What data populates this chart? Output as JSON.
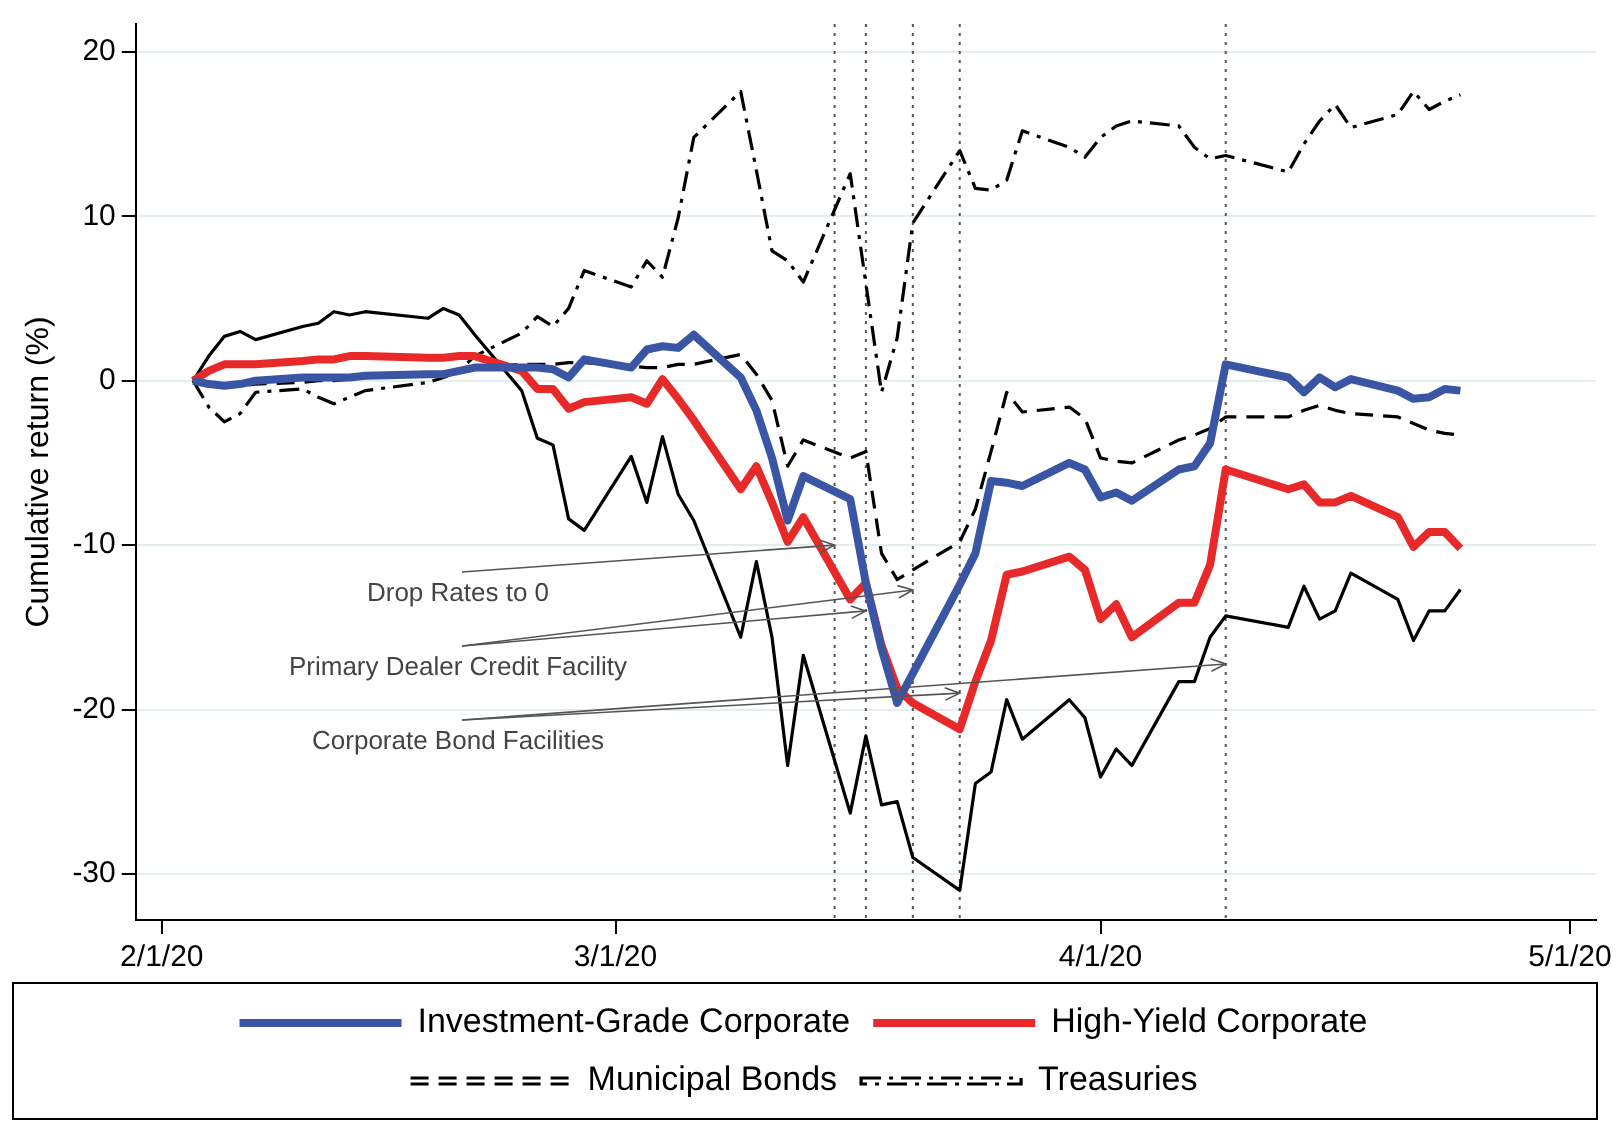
{
  "chart_data": {
    "type": "line",
    "ylabel": "Cumulative return (%)",
    "x": [
      "2020-02-03",
      "2020-02-04",
      "2020-02-05",
      "2020-02-06",
      "2020-02-07",
      "2020-02-10",
      "2020-02-11",
      "2020-02-12",
      "2020-02-13",
      "2020-02-14",
      "2020-02-18",
      "2020-02-19",
      "2020-02-20",
      "2020-02-21",
      "2020-02-24",
      "2020-02-25",
      "2020-02-26",
      "2020-02-27",
      "2020-02-28",
      "2020-03-02",
      "2020-03-03",
      "2020-03-04",
      "2020-03-05",
      "2020-03-06",
      "2020-03-09",
      "2020-03-10",
      "2020-03-11",
      "2020-03-12",
      "2020-03-13",
      "2020-03-16",
      "2020-03-17",
      "2020-03-18",
      "2020-03-19",
      "2020-03-20",
      "2020-03-23",
      "2020-03-24",
      "2020-03-25",
      "2020-03-26",
      "2020-03-27",
      "2020-03-30",
      "2020-03-31",
      "2020-04-01",
      "2020-04-02",
      "2020-04-03",
      "2020-04-06",
      "2020-04-07",
      "2020-04-08",
      "2020-04-09",
      "2020-04-13",
      "2020-04-14",
      "2020-04-15",
      "2020-04-16",
      "2020-04-17",
      "2020-04-20",
      "2020-04-21",
      "2020-04-22",
      "2020-04-23",
      "2020-04-24"
    ],
    "series": [
      {
        "name": "Investment-Grade Corporate",
        "color": "#3a55a4",
        "line_style": "solid",
        "values": [
          0,
          -0.2,
          -0.3,
          -0.2,
          0,
          0.2,
          0.2,
          0.2,
          0.2,
          0.3,
          0.4,
          0.4,
          0.6,
          0.8,
          0.8,
          0.8,
          0.7,
          0.2,
          1.3,
          0.8,
          1.9,
          2.1,
          2,
          2.8,
          0.2,
          -1.8,
          -4.7,
          -8.5,
          -5.8,
          -7.2,
          -12.3,
          -16.3,
          -19.6,
          -17.8,
          -12.4,
          -10.5,
          -6.1,
          -6.2,
          -6.4,
          -5,
          -5.4,
          -7.1,
          -6.8,
          -7.3,
          -5.4,
          -5.2,
          -3.8,
          1,
          0.2,
          -0.7,
          0.2,
          -0.4,
          0.1,
          -0.6,
          -1.1,
          -1,
          -0.5,
          -0.6
        ]
      },
      {
        "name": "High-Yield Corporate",
        "color": "#e8292a",
        "line_style": "solid",
        "values": [
          0,
          0.6,
          1,
          1,
          1,
          1.2,
          1.3,
          1.3,
          1.5,
          1.5,
          1.4,
          1.4,
          1.5,
          1.5,
          0.6,
          -0.5,
          -0.5,
          -1.7,
          -1.3,
          -1,
          -1.4,
          0.1,
          -1.1,
          -2.4,
          -6.6,
          -5.2,
          -7.4,
          -9.8,
          -8.3,
          -13.3,
          -12.3,
          -16.1,
          -18.7,
          -19.6,
          -21.2,
          -18.3,
          -15.8,
          -11.8,
          -11.6,
          -10.7,
          -11.5,
          -14.5,
          -13.6,
          -15.6,
          -13.5,
          -13.5,
          -11.2,
          -5.4,
          -6.6,
          -6.3,
          -7.4,
          -7.4,
          -7,
          -8.3,
          -10.1,
          -9.2,
          -9.2,
          -10.2
        ]
      },
      {
        "name": "Municipal Bonds",
        "color": "#000000",
        "line_style": "dashed",
        "values": [
          0,
          -0.2,
          -0.3,
          -0.3,
          -0.2,
          -0.1,
          0,
          0,
          0.1,
          0.2,
          0.3,
          0.4,
          0.6,
          0.8,
          1,
          1,
          1,
          1.1,
          1.1,
          0.9,
          0.8,
          0.8,
          1,
          1,
          1.6,
          0.4,
          -1.2,
          -5.2,
          -3.6,
          -4.7,
          -4.3,
          -10.5,
          -12.1,
          -11.5,
          -9.8,
          -7.8,
          -4.3,
          -0.7,
          -1.9,
          -1.6,
          -2.3,
          -4.7,
          -4.9,
          -5,
          -3.6,
          -3.3,
          -2.9,
          -2.2,
          -2.2,
          -1.8,
          -1.5,
          -1.8,
          -2,
          -2.2,
          -2.6,
          -3,
          -3.2,
          -3.3
        ]
      },
      {
        "name": "Treasuries",
        "color": "#000000",
        "line_style": "dashdot",
        "values": [
          0,
          -1.6,
          -2.5,
          -2,
          -0.7,
          -0.5,
          -1,
          -1.4,
          -1,
          -0.6,
          -0.1,
          0.2,
          0.6,
          1.5,
          2.9,
          3.9,
          3.3,
          4.4,
          6.7,
          5.7,
          7.3,
          6.3,
          9.9,
          14.8,
          17.6,
          12.8,
          7.9,
          7.3,
          6,
          12.6,
          5.9,
          -0.7,
          2.6,
          9.6,
          14,
          11.7,
          11.6,
          12.2,
          15.2,
          14.2,
          13.6,
          14.8,
          15.5,
          15.8,
          15.5,
          14.2,
          13.5,
          13.7,
          12.7,
          14.4,
          15.8,
          16.8,
          15.4,
          16.2,
          17.6,
          16.5,
          17,
          17.4
        ]
      },
      {
        "color": "#000000",
        "line_style": "solid",
        "values": [
          0,
          1.5,
          2.7,
          3,
          2.5,
          3.3,
          3.5,
          4.2,
          4,
          4.2,
          3.8,
          4.4,
          4,
          2.8,
          -0.6,
          -3.5,
          -3.9,
          -8.4,
          -9.1,
          -4.6,
          -7.4,
          -3.4,
          -6.9,
          -8.5,
          -15.6,
          -11,
          -15.6,
          -23.4,
          -16.7,
          -26.3,
          -21.6,
          -25.8,
          -25.6,
          -29,
          -31,
          -24.5,
          -23.8,
          -19.4,
          -21.8,
          -19.4,
          -20.5,
          -24.1,
          -22.4,
          -23.4,
          -18.3,
          -18.3,
          -15.6,
          -14.3,
          -15,
          -12.5,
          -14.5,
          -14,
          -11.7,
          -13.3,
          -15.8,
          -14,
          -14,
          -12.7
        ]
      }
    ],
    "xlim": [
      "2020-01-30T08:00",
      "2020-05-02T16:00"
    ],
    "xticks": [
      {
        "value": "2020-02-01",
        "label": "2/1/20"
      },
      {
        "value": "2020-03-01",
        "label": "3/1/20"
      },
      {
        "value": "2020-04-01",
        "label": "4/1/20"
      },
      {
        "value": "2020-05-01",
        "label": "5/1/20"
      }
    ],
    "ylim": [
      -32.8,
      21.7
    ],
    "yticks": [
      -30,
      -20,
      -10,
      0,
      10,
      20
    ],
    "grid": "y",
    "legend": "bottom",
    "marker": "none",
    "ref_lines": [
      {
        "axis": "x",
        "value": "2020-03-15",
        "color": "#555555",
        "line_style": "dotted"
      },
      {
        "axis": "x",
        "value": "2020-03-17",
        "color": "#555555",
        "line_style": "dotted"
      },
      {
        "axis": "x",
        "value": "2020-03-20",
        "color": "#555555",
        "line_style": "dotted"
      },
      {
        "axis": "x",
        "value": "2020-03-23",
        "color": "#555555",
        "line_style": "dotted"
      },
      {
        "axis": "x",
        "value": "2020-04-09",
        "color": "#555555",
        "line_style": "dotted"
      }
    ],
    "annotations": [
      {
        "text": "Drop Rates to 0",
        "x": "2020-03-15",
        "y": -10
      },
      {
        "text": "Primary Dealer Credit Facility",
        "x": "2020-03-17",
        "y": -14
      },
      {
        "text": "Corporate Bond Facilities",
        "x": "2020-03-23",
        "y": -19
      }
    ]
  }
}
